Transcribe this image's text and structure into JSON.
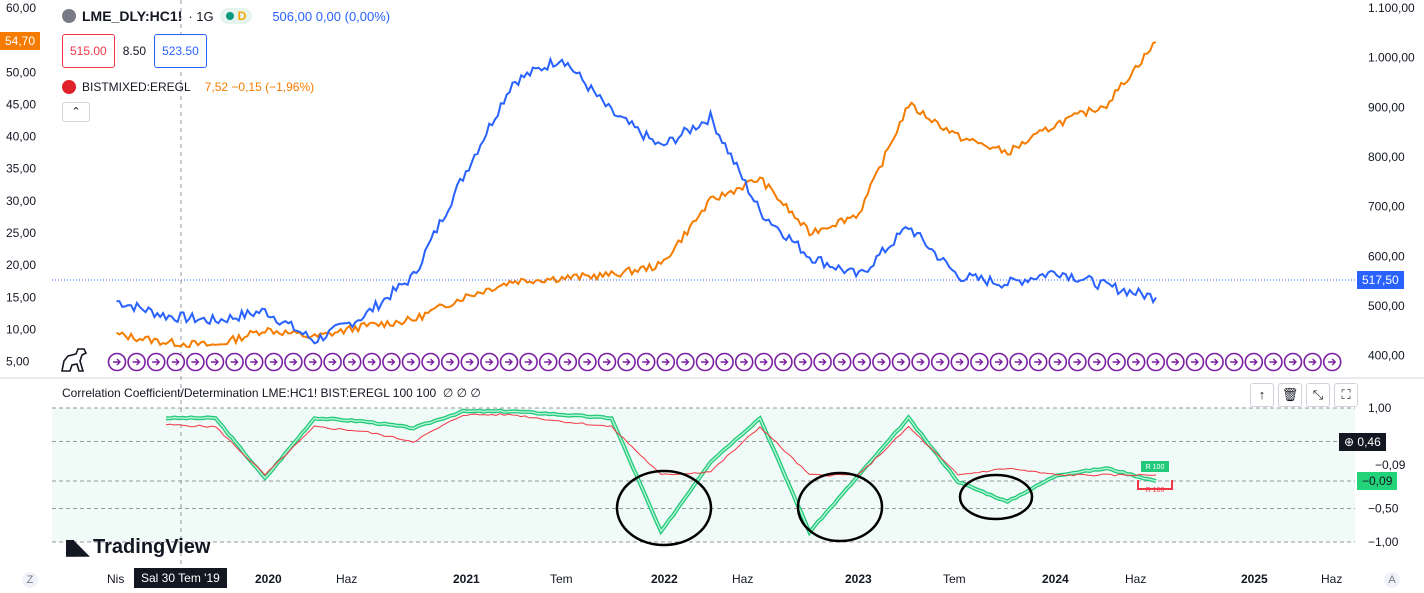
{
  "main_legend": {
    "symbol": "LME_DLY:HC1!",
    "interval": "· 1G",
    "badge": "D",
    "values": "506,00 0,00 (0,00%)"
  },
  "price_boxes": {
    "sell": "515.00",
    "spread": "8.50",
    "buy": "523.50"
  },
  "secondary_legend": {
    "symbol": "BISTMIXED:EREGL",
    "values": "7,52 −0,15 (−1,96%)"
  },
  "collapse_icon": "chevron-up-icon",
  "left_badge": "54,70",
  "right_badge": "517,50",
  "indicator": {
    "title": "Correlation Coefficient/Determination LME:HC1! BIST:EREGL 100 100",
    "title_suffix": "∅ ∅ ∅",
    "tools": [
      "↑",
      "🗑",
      "⤡",
      "⛶"
    ],
    "badges": {
      "current": "0,46",
      "neg_a": "−0,09",
      "neg_b": "−0,09"
    },
    "tag_r": "R 100"
  },
  "axes": {
    "left_ticks": [
      "60,00",
      "55,00",
      "50,00",
      "45,00",
      "40,00",
      "35,00",
      "30,00",
      "25,00",
      "20,00",
      "15,00",
      "10,00",
      "5,00"
    ],
    "right_ticks": [
      "1.100,00",
      "1.000,00",
      "900,00",
      "800,00",
      "700,00",
      "600,00",
      "500,00",
      "400,00"
    ],
    "ind_ticks": [
      "1,00",
      "−0,50",
      "−1,00"
    ],
    "time_labels": [
      {
        "t": "Nis",
        "bold": false
      },
      {
        "t": "2020",
        "bold": true
      },
      {
        "t": "Haz",
        "bold": false
      },
      {
        "t": "2021",
        "bold": true
      },
      {
        "t": "Tem",
        "bold": false
      },
      {
        "t": "2022",
        "bold": true
      },
      {
        "t": "Haz",
        "bold": false
      },
      {
        "t": "2023",
        "bold": true
      },
      {
        "t": "Tem",
        "bold": false
      },
      {
        "t": "2024",
        "bold": true
      },
      {
        "t": "Haz",
        "bold": false
      },
      {
        "t": "2025",
        "bold": true
      },
      {
        "t": "Haz",
        "bold": false
      }
    ],
    "crosshair_date": "Sal 30 Tem '19",
    "corner_left": "Z",
    "corner_right": "A"
  },
  "branding": {
    "logo_text": "TradingView"
  },
  "colors": {
    "hc1": "#2962ff",
    "eregl": "#f57c00",
    "corr": "#22c97a",
    "det": "#f23645"
  },
  "chart_data": {
    "type": "line",
    "x": [
      "2019-04",
      "2019-07",
      "2019-10",
      "2020-01",
      "2020-04",
      "2020-07",
      "2020-10",
      "2021-01",
      "2021-04",
      "2021-07",
      "2021-10",
      "2022-01",
      "2022-04",
      "2022-07",
      "2022-10",
      "2023-01",
      "2023-04",
      "2023-07",
      "2023-10",
      "2024-01",
      "2024-04",
      "2024-07"
    ],
    "series": [
      {
        "name": "LME_DLY:HC1!",
        "axis": "right",
        "values": [
          510,
          480,
          470,
          490,
          430,
          480,
          560,
          760,
          950,
          1000,
          890,
          820,
          880,
          690,
          600,
          560,
          660,
          560,
          545,
          570,
          540,
          517
        ]
      },
      {
        "name": "BISTMIXED:EREGL",
        "axis": "left",
        "values": [
          9.2,
          8.0,
          7.5,
          10.0,
          8.8,
          10.5,
          11.5,
          15.0,
          17.5,
          18.0,
          18.5,
          20.0,
          30.0,
          33.5,
          25.0,
          28.0,
          45.0,
          40.0,
          37.5,
          42.0,
          45.0,
          54.7
        ]
      }
    ],
    "left_ylim": [
      4,
      60
    ],
    "right_ylim": [
      375,
      1100
    ],
    "indicator": {
      "name": "Correlation Coefficient",
      "ylim": [
        -1,
        1
      ],
      "levels": [
        1.0,
        0.5,
        -0.09,
        -0.5,
        -1.0
      ],
      "x": [
        "2019-07",
        "2019-10",
        "2020-01",
        "2020-04",
        "2020-07",
        "2020-10",
        "2021-01",
        "2021-04",
        "2021-07",
        "2021-10",
        "2022-01",
        "2022-04",
        "2022-07",
        "2022-10",
        "2023-01",
        "2023-04",
        "2023-07",
        "2023-10",
        "2024-01",
        "2024-04",
        "2024-07"
      ],
      "correlation": [
        0.85,
        0.85,
        -0.05,
        0.85,
        0.8,
        0.7,
        0.95,
        0.95,
        0.9,
        0.85,
        -0.85,
        0.2,
        0.85,
        -0.85,
        0.0,
        0.85,
        -0.1,
        -0.4,
        0.0,
        0.1,
        -0.09
      ],
      "determination": [
        0.75,
        0.72,
        0.0,
        0.72,
        0.65,
        0.5,
        0.9,
        0.9,
        0.8,
        0.72,
        0.0,
        0.05,
        0.72,
        0.0,
        0.0,
        0.72,
        0.0,
        0.1,
        0.0,
        0.0,
        0.0
      ]
    }
  }
}
